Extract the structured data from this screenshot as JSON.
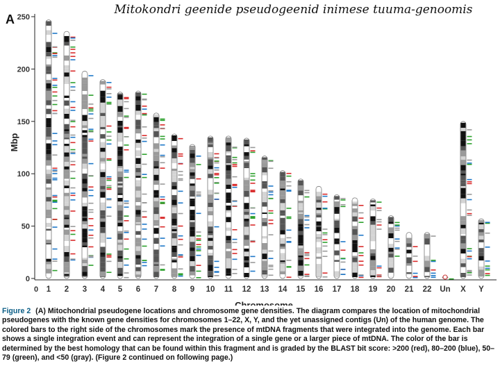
{
  "slide_title": "Mitokondri geenide pseudogeenid inimese tuuma-genoomis",
  "panel_letter": "A",
  "caption": {
    "figure_label": "Figure 2",
    "text": "(A) Mitochondrial pseudogene locations and chromosome gene densities. The diagram compares the location of mitochondrial pseudogenes with the known gene densities for chromosomes 1–22, X, Y, and the yet unassigned contigs (Un) of the human genome. The colored bars to the right side of the chromosomes mark the presence of mtDNA fragments that were integrated into the genome. Each bar shows a single integration event and can represent the integration of a single gene or a larger piece of mtDNA. The color of the bar is determined by the best homology that can be found within this fragment and is graded by the BLAST bit score: >200 (red), 80–200 (blue), 50–79 (green), and <50 (gray). (Figure 2 continued on following page.)"
  },
  "chart_data": {
    "type": "ideogram",
    "ylabel": "Mbp",
    "xlabel": "Chromosome",
    "ylim": [
      0,
      250
    ],
    "yticks": [
      0,
      50,
      100,
      150,
      200,
      250
    ],
    "x_zero_label": "0",
    "chromosomes": [
      {
        "name": "1",
        "length": 247
      },
      {
        "name": "2",
        "length": 236
      },
      {
        "name": "3",
        "length": 198
      },
      {
        "name": "4",
        "length": 190
      },
      {
        "name": "5",
        "length": 178
      },
      {
        "name": "6",
        "length": 179
      },
      {
        "name": "7",
        "length": 158
      },
      {
        "name": "8",
        "length": 138
      },
      {
        "name": "9",
        "length": 128
      },
      {
        "name": "10",
        "length": 136
      },
      {
        "name": "11",
        "length": 136
      },
      {
        "name": "12",
        "length": 134
      },
      {
        "name": "13",
        "length": 117
      },
      {
        "name": "14",
        "length": 103
      },
      {
        "name": "15",
        "length": 95
      },
      {
        "name": "16",
        "length": 88
      },
      {
        "name": "17",
        "length": 80
      },
      {
        "name": "18",
        "length": 77
      },
      {
        "name": "19",
        "length": 76
      },
      {
        "name": "20",
        "length": 60
      },
      {
        "name": "21",
        "length": 44
      },
      {
        "name": "22",
        "length": 44
      },
      {
        "name": "Un",
        "length": 2
      },
      {
        "name": "X",
        "length": 150
      },
      {
        "name": "Y",
        "length": 57
      }
    ],
    "pseudogene_colors": {
      "bit_score_gt_200": "#d92b2b",
      "bit_score_80_200": "#1f78c8",
      "bit_score_50_79": "#2ca02c",
      "bit_score_lt_50": "#9a9a9a"
    },
    "band_colors": [
      "#111111",
      "#555555",
      "#9a9a9a",
      "#d4d4d4",
      "#ffffff"
    ]
  }
}
